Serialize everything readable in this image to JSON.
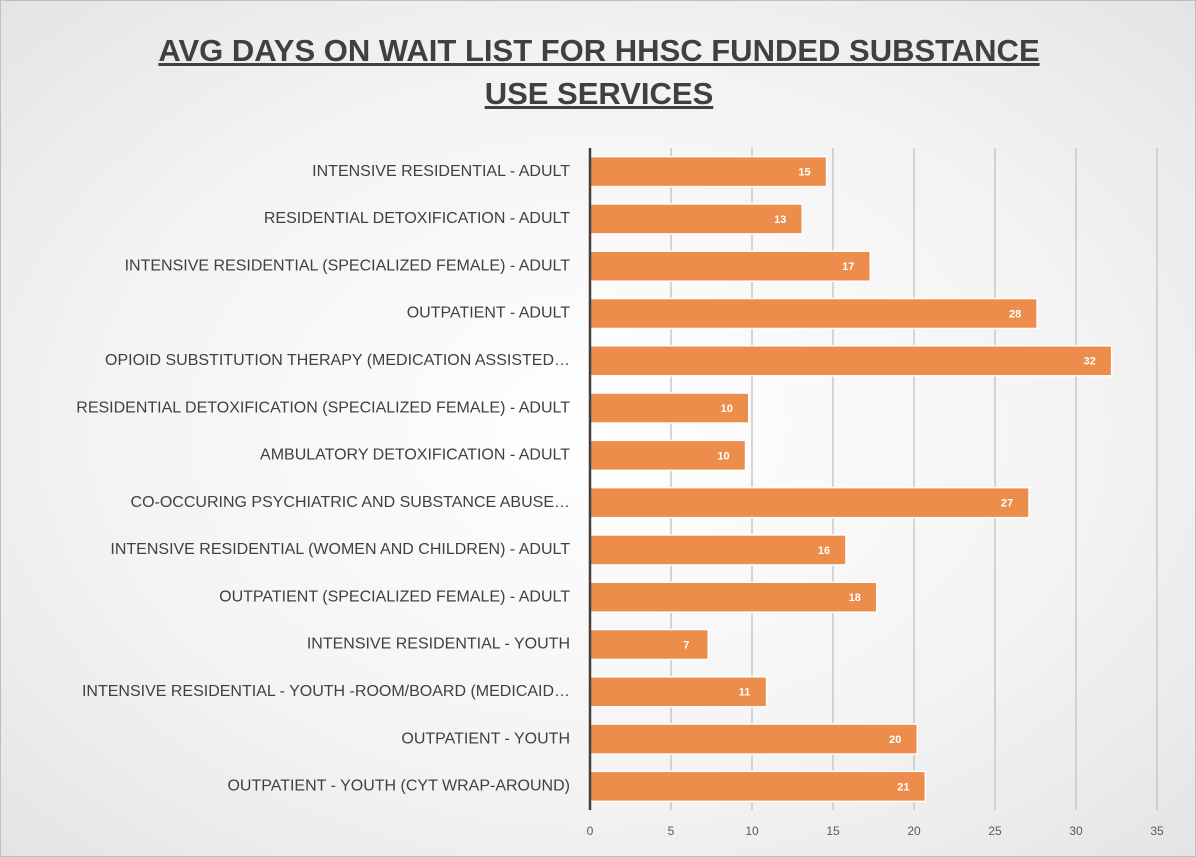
{
  "chart_data": {
    "type": "bar",
    "orientation": "horizontal",
    "title": "AVG DAYS ON WAIT LIST FOR HHSC FUNDED SUBSTANCE USE SERVICES",
    "categories": [
      "INTENSIVE RESIDENTIAL - ADULT",
      "RESIDENTIAL DETOXIFICATION - ADULT",
      "INTENSIVE RESIDENTIAL (SPECIALIZED FEMALE) - ADULT",
      "OUTPATIENT - ADULT",
      "OPIOID SUBSTITUTION THERAPY (MEDICATION ASSISTED…",
      "RESIDENTIAL DETOXIFICATION (SPECIALIZED FEMALE) - ADULT",
      "AMBULATORY DETOXIFICATION - ADULT",
      "CO-OCCURING PSYCHIATRIC AND SUBSTANCE ABUSE…",
      "INTENSIVE RESIDENTIAL (WOMEN AND CHILDREN) - ADULT",
      "OUTPATIENT (SPECIALIZED FEMALE) - ADULT",
      "INTENSIVE RESIDENTIAL - YOUTH",
      "INTENSIVE RESIDENTIAL - YOUTH -ROOM/BOARD (MEDICAID…",
      "OUTPATIENT - YOUTH",
      "OUTPATIENT - YOUTH (CYT WRAP-AROUND)"
    ],
    "values": [
      14.6,
      13.1,
      17.3,
      27.6,
      32.2,
      9.8,
      9.6,
      27.1,
      15.8,
      17.7,
      7.3,
      10.9,
      20.2,
      20.7
    ],
    "value_labels": [
      "15",
      "13",
      "17",
      "28",
      "32",
      "10",
      "10",
      "27",
      "16",
      "18",
      "7",
      "11",
      "20",
      "21"
    ],
    "color": "#ed8d4c",
    "xlim": [
      0,
      35
    ],
    "xticks": [
      0,
      5,
      10,
      15,
      20,
      25,
      30,
      35
    ],
    "grid": true
  }
}
